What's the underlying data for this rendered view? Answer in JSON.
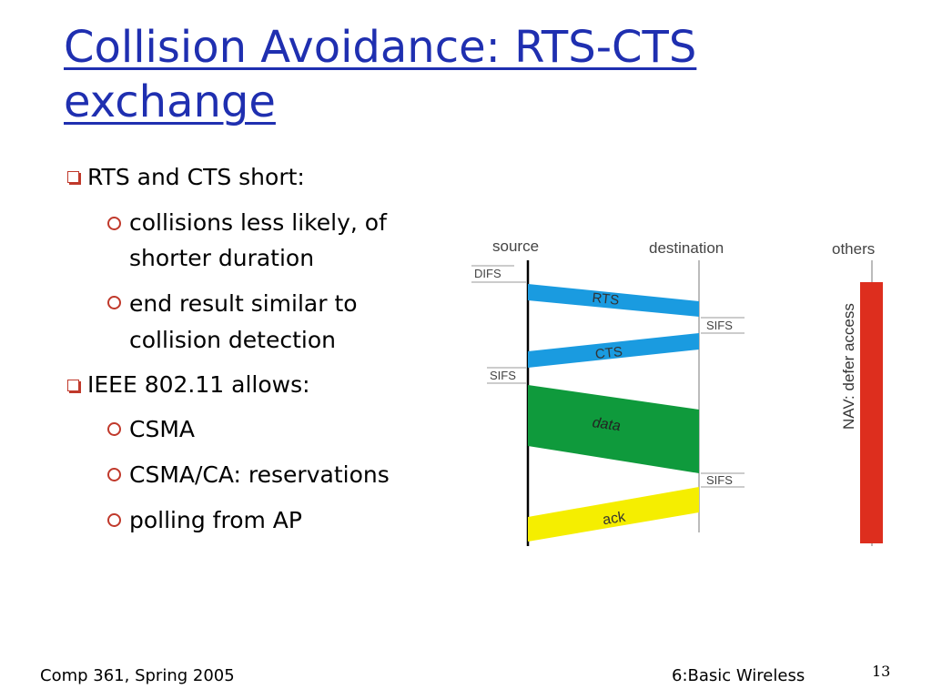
{
  "slide": {
    "title": "Collision Avoidance: RTS-CTS exchange",
    "bullets": [
      {
        "level": 1,
        "text": "RTS and CTS short:"
      },
      {
        "level": 2,
        "text": "collisions less likely, of"
      },
      {
        "level": 2,
        "text": "shorter duration",
        "continuation": true
      },
      {
        "level": 2,
        "text": "end result similar to"
      },
      {
        "level": 2,
        "text": "collision detection",
        "continuation": true
      },
      {
        "level": 1,
        "text": "IEEE 802.11 allows:"
      },
      {
        "level": 2,
        "text": "CSMA"
      },
      {
        "level": 2,
        "text": "CSMA/CA: reservations"
      },
      {
        "level": 2,
        "text": " polling from AP"
      }
    ],
    "footer_left": "Comp 361, Spring 2005",
    "footer_right": "6:Basic Wireless",
    "page_number": "13"
  },
  "diagram": {
    "labels": {
      "source": "source",
      "destination": "destination",
      "others": "others",
      "difs": "DIFS",
      "sifs": "SIFS",
      "rts": "RTS",
      "cts": "CTS",
      "data": "data",
      "ack": "ack",
      "nav": "NAV: defer access"
    },
    "colors": {
      "rts": "#1a9be0",
      "cts": "#1a9be0",
      "data": "#0f9a3c",
      "ack": "#f5ee00",
      "nav": "#dd2e1e"
    }
  }
}
